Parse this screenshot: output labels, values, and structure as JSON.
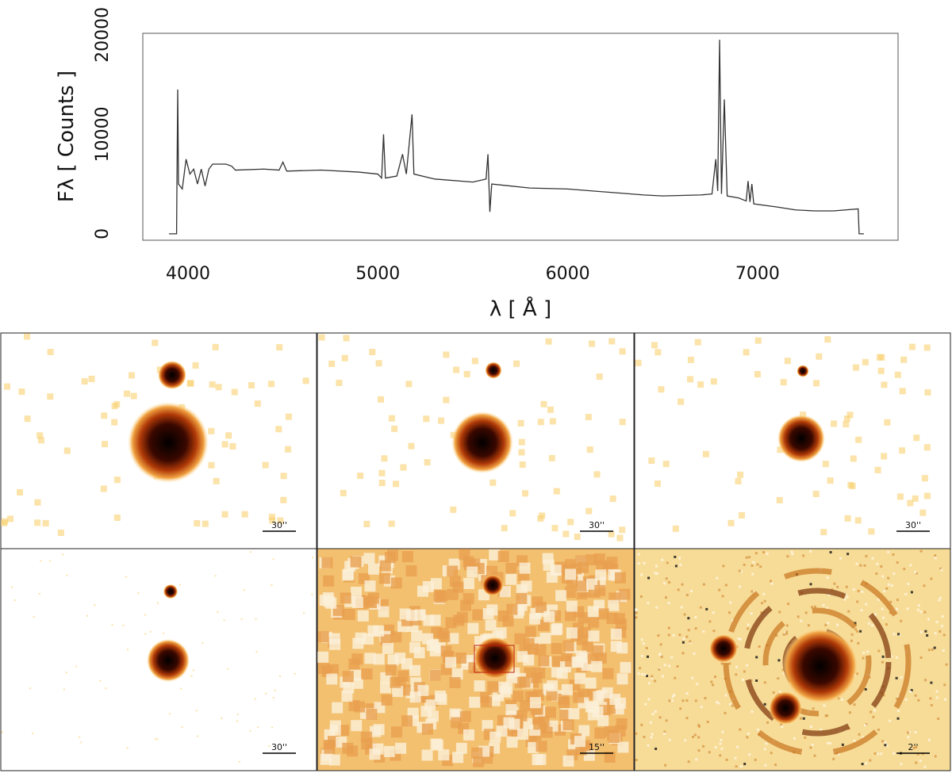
{
  "chart_data": {
    "type": "line",
    "xlabel": "λ [ Å ]",
    "ylabel": "Fλ [ Counts ]",
    "xlim": [
      3762,
      7740
    ],
    "ylim": [
      -650,
      20150
    ],
    "xticks": [
      4000,
      5000,
      6000,
      7000
    ],
    "yticks": [
      0,
      10000,
      20000
    ],
    "series": [
      {
        "color": "#333333",
        "x": [
          3900,
          3940,
          3942,
          3946,
          3950,
          3970,
          3990,
          4010,
          4030,
          4050,
          4070,
          4090,
          4110,
          4130,
          4200,
          4230,
          4250,
          4400,
          4480,
          4500,
          4520,
          4700,
          4900,
          5000,
          5020,
          5030,
          5040,
          5100,
          5130,
          5150,
          5180,
          5190,
          5300,
          5500,
          5570,
          5580,
          5590,
          5600,
          5800,
          6000,
          6200,
          6400,
          6500,
          6700,
          6760,
          6780,
          6790,
          6800,
          6810,
          6825,
          6840,
          6900,
          6940,
          6950,
          6960,
          6970,
          6980,
          7100,
          7200,
          7300,
          7400,
          7530,
          7535,
          7560
        ],
        "values": [
          0,
          0,
          5500,
          14500,
          5000,
          4500,
          7500,
          6000,
          6500,
          5000,
          6500,
          4800,
          6500,
          7000,
          7000,
          6800,
          6400,
          6500,
          6400,
          7200,
          6300,
          6400,
          6200,
          6000,
          5600,
          10000,
          5600,
          5800,
          8000,
          6000,
          12000,
          6000,
          5500,
          5200,
          5500,
          8000,
          2200,
          5000,
          4600,
          4500,
          4200,
          3900,
          3800,
          3900,
          4000,
          7500,
          4300,
          19500,
          4000,
          13500,
          3800,
          3600,
          3300,
          5300,
          3200,
          5000,
          3000,
          2700,
          2400,
          2300,
          2300,
          2500,
          0,
          0
        ]
      }
    ]
  },
  "images": [
    {
      "scale": "30''"
    },
    {
      "scale": "30''"
    },
    {
      "scale": "30''"
    },
    {
      "scale": "30''"
    },
    {
      "scale": "15''"
    },
    {
      "scale": "2''"
    }
  ]
}
